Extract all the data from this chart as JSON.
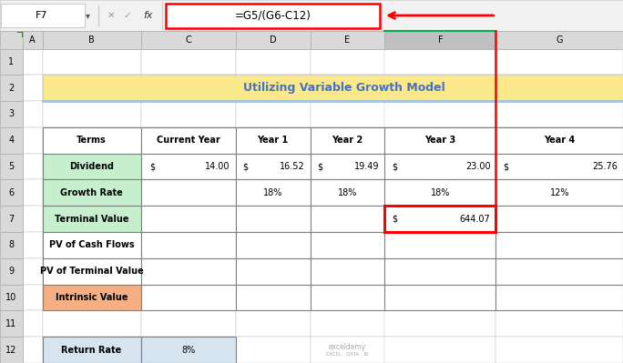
{
  "title": "Utilizing Variable Growth Model",
  "title_bg": "#FAE88A",
  "title_color": "#4472C4",
  "formula_bar_text": "=G5/(G6-C12)",
  "cell_ref": "F7",
  "col_headers": [
    "Terms",
    "Current Year",
    "Year 1",
    "Year 2",
    "Year 3",
    "Year 4"
  ],
  "row_labels": [
    "Dividend",
    "Growth Rate",
    "Terminal Value",
    "PV of Cash Flows",
    "PV of Terminal Value",
    "Intrinsic Value"
  ],
  "row_label_bg": [
    "#C6EFCE",
    "#C6EFCE",
    "#C6EFCE",
    "#FFFFFF",
    "#FFFFFF",
    "#F4B084"
  ],
  "dividend_data": [
    "$",
    "14.00",
    "$",
    "16.52",
    "$",
    "19.49",
    "$",
    "23.00",
    "$",
    "25.76"
  ],
  "growth_data": [
    "",
    "",
    "18%",
    "18%",
    "18%",
    "12%"
  ],
  "terminal_data": [
    "$",
    "644.07"
  ],
  "bottom_label": "Return Rate",
  "bottom_value": "8%",
  "arrow_color": "#FF0000",
  "formula_box_color": "#FF0000",
  "bg_color": "#F0F0F0",
  "excel_header_bg": "#D9D9D9",
  "selected_col_bg": "#C0C0C0",
  "table_header_bg": "#FFFFFF",
  "white": "#FFFFFF",
  "grid_dark": "#808080",
  "grid_light": "#C0C0C0",
  "return_rate_bg": "#D6E4F0",
  "title_blue_line": "#9DC3E6",
  "green_header_border": "#00B050"
}
